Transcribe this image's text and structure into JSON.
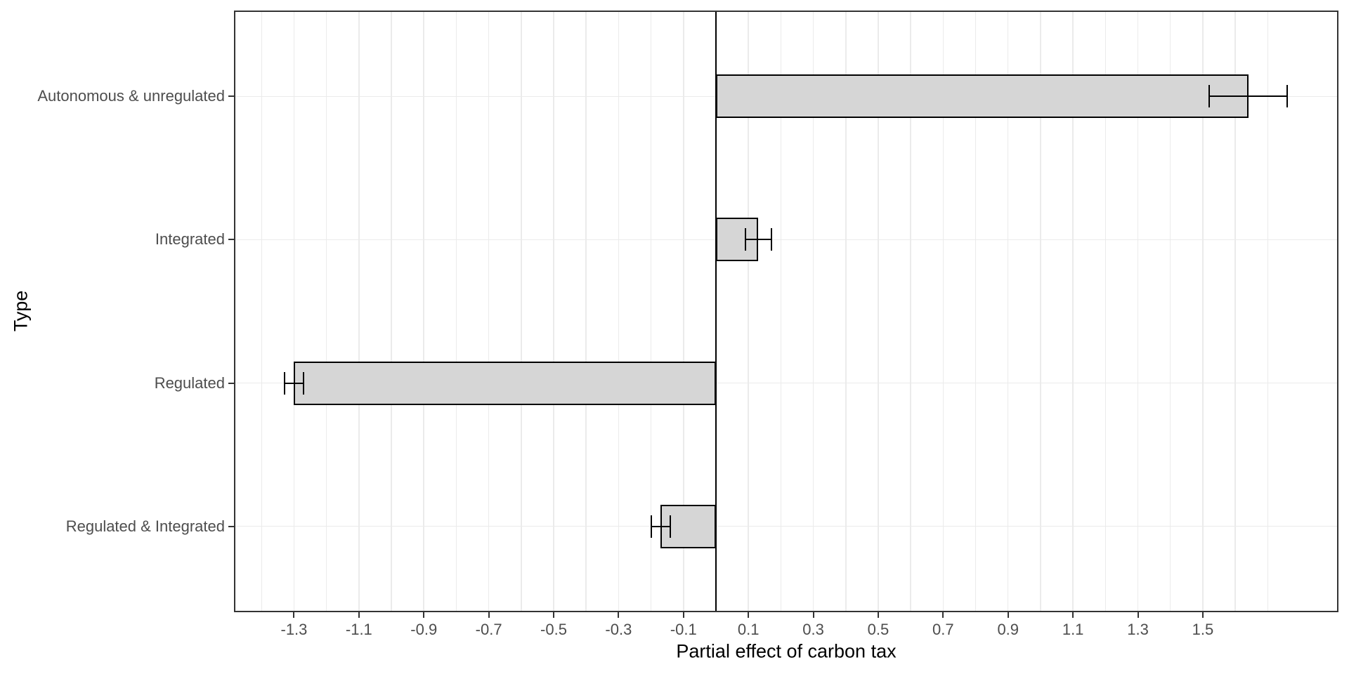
{
  "chart_data": {
    "type": "bar",
    "orientation": "horizontal",
    "title": "",
    "xlabel": "Partial effect of carbon tax",
    "ylabel": "Type",
    "categories": [
      "Autonomous & unregulated",
      "Integrated",
      "Regulated",
      "Regulated & Integrated"
    ],
    "values": [
      1.64,
      0.13,
      -1.3,
      -0.17
    ],
    "error_low": [
      1.52,
      0.09,
      -1.33,
      -0.2
    ],
    "error_high": [
      1.76,
      0.17,
      -1.27,
      -0.14
    ],
    "xlim": [
      -1.485,
      1.918
    ],
    "x_ticks": [
      -1.3,
      -1.1,
      -0.9,
      -0.7,
      -0.5,
      -0.3,
      -0.1,
      0.1,
      0.3,
      0.5,
      0.7,
      0.9,
      1.1,
      1.3,
      1.5
    ],
    "x_tick_labels": [
      "-1.3",
      "-1.1",
      "-0.9",
      "-0.7",
      "-0.5",
      "-0.3",
      "-0.1",
      "0.1",
      "0.3",
      "0.5",
      "0.7",
      "0.9",
      "1.1",
      "1.3",
      "1.5"
    ],
    "grid": "on",
    "gridline_step": 0.1,
    "gridline_min": -1.4,
    "gridline_max": 1.7,
    "reference_line_x": 0,
    "legend_position": "none",
    "colors": {
      "bar_fill": "#d6d6d6",
      "bar_border": "#000000",
      "error_bar": "#000000",
      "reference_line": "#000000",
      "gridline": "#ebebeb",
      "panel_border": "#333333",
      "tick_label": "#4d4d4d",
      "axis_title": "#000000",
      "background": "#ffffff"
    }
  }
}
